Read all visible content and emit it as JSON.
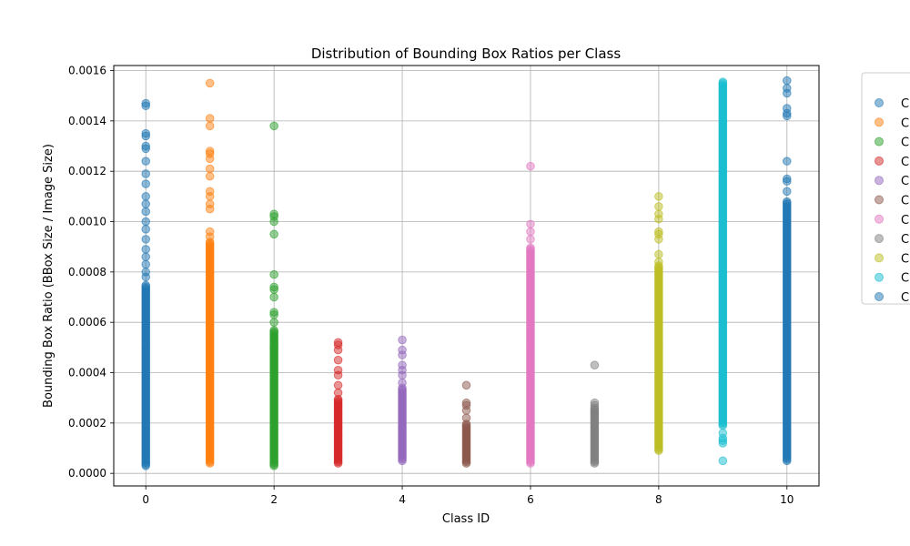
{
  "chart_data": {
    "type": "scatter",
    "title": "Distribution of Bounding Box Ratios per Class",
    "xlabel": "Class ID",
    "ylabel": "Bounding Box Ratio (BBox Size / Image Size)",
    "xlim": [
      -0.5,
      10.5
    ],
    "ylim": [
      -5e-05,
      0.00162
    ],
    "xticks": [
      "0",
      "2",
      "4",
      "6",
      "8",
      "10"
    ],
    "yticks": [
      "0.0000",
      "0.0002",
      "0.0004",
      "0.0006",
      "0.0008",
      "0.0010",
      "0.0012",
      "0.0014",
      "0.0016"
    ],
    "grid": true,
    "legend_position": "right (partially cut off)",
    "legend_labels": [
      "C",
      "C",
      "C",
      "C",
      "C",
      "C",
      "C",
      "C",
      "C",
      "C",
      "C"
    ],
    "series": [
      {
        "class_id": 0,
        "color": "#1f77b4",
        "range": [
          3e-05,
          0.00075
        ],
        "points": [
          0.00147,
          0.00146,
          0.00135,
          0.00134,
          0.0013,
          0.00129,
          0.00124,
          0.00119,
          0.00115,
          0.0011,
          0.00107,
          0.00104,
          0.001,
          0.00097,
          0.00093,
          0.00089,
          0.00086,
          0.00083,
          0.0008,
          0.00078
        ]
      },
      {
        "class_id": 1,
        "color": "#ff7f0e",
        "range": [
          4e-05,
          0.00092
        ],
        "points": [
          0.00155,
          0.00141,
          0.00138,
          0.00128,
          0.00127,
          0.00125,
          0.00121,
          0.00118,
          0.00112,
          0.0011,
          0.00107,
          0.00105,
          0.00096,
          0.00094
        ]
      },
      {
        "class_id": 2,
        "color": "#2ca02c",
        "range": [
          3e-05,
          0.00057
        ],
        "points": [
          0.00138,
          0.00103,
          0.00102,
          0.001,
          0.00095,
          0.00079,
          0.00074,
          0.00073,
          0.0007,
          0.00064,
          0.00063,
          0.0006
        ]
      },
      {
        "class_id": 3,
        "color": "#d62728",
        "range": [
          4e-05,
          0.0003
        ],
        "points": [
          0.00052,
          0.00051,
          0.00049,
          0.00045,
          0.00041,
          0.00039,
          0.00035,
          0.00032
        ]
      },
      {
        "class_id": 4,
        "color": "#9467bd",
        "range": [
          5e-05,
          0.00034
        ],
        "points": [
          0.00053,
          0.00049,
          0.00047,
          0.00043,
          0.00041,
          0.00039,
          0.00036
        ]
      },
      {
        "class_id": 5,
        "color": "#8c564b",
        "range": [
          4e-05,
          0.0002
        ],
        "points": [
          0.00035,
          0.00028,
          0.00027,
          0.00025,
          0.00022
        ]
      },
      {
        "class_id": 6,
        "color": "#e377c2",
        "range": [
          4e-05,
          0.0009
        ],
        "points": [
          0.00122,
          0.00099,
          0.00096,
          0.00093
        ]
      },
      {
        "class_id": 7,
        "color": "#7f7f7f",
        "range": [
          4e-05,
          0.00026
        ],
        "points": [
          0.00043,
          0.00028,
          0.00027
        ]
      },
      {
        "class_id": 8,
        "color": "#bcbd22",
        "range": [
          9e-05,
          0.00083
        ],
        "points": [
          0.0011,
          0.00106,
          0.00103,
          0.00101,
          0.00096,
          0.00095,
          0.00093,
          0.00087,
          0.00084
        ]
      },
      {
        "class_id": 9,
        "color": "#17becf",
        "range": [
          0.00019,
          0.00156
        ],
        "points": [
          5e-05,
          0.00012,
          0.00013,
          0.00014,
          0.00016
        ]
      },
      {
        "class_id": 10,
        "color": "#1f77b4",
        "range": [
          5e-05,
          0.00108
        ],
        "points": [
          0.00156,
          0.00153,
          0.00151,
          0.00145,
          0.00143,
          0.00142,
          0.00124,
          0.00117,
          0.00116,
          0.00112
        ]
      }
    ]
  }
}
